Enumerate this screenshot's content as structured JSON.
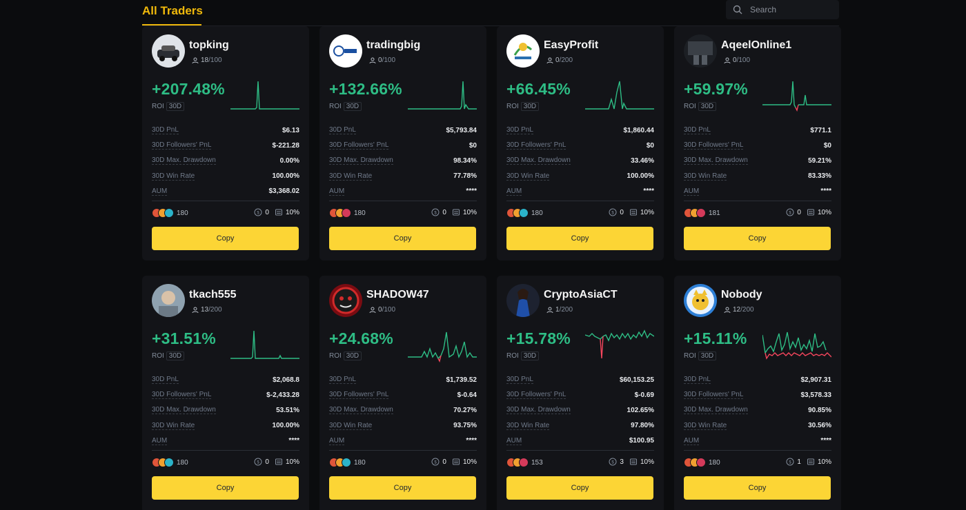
{
  "header": {
    "tab_label": "All Traders",
    "search_placeholder": "Search"
  },
  "labels": {
    "roi": "ROI",
    "period": "30D",
    "pnl": "30D PnL",
    "followers_pnl": "30D Followers' PnL",
    "max_drawdown": "30D Max. Drawdown",
    "win_rate": "30D Win Rate",
    "aum": "AUM",
    "copy_button": "Copy"
  },
  "colors": {
    "accent": "#f0b90b",
    "button": "#fcd535",
    "positive": "#2ebd85",
    "negative": "#f6465d"
  },
  "traders": [
    {
      "name": "topking",
      "followers": "18",
      "max": "/100",
      "roi": "+207.48%",
      "pnl": "$6.13",
      "followers_pnl": "$-221.28",
      "max_drawdown": "0.00%",
      "win_rate": "100.00%",
      "aum": "$3,368.02",
      "copiers": "180",
      "stat_a": "0",
      "stat_b": "10%"
    },
    {
      "name": "tradingbig",
      "followers": "0",
      "max": "/100",
      "roi": "+132.66%",
      "pnl": "$5,793.84",
      "followers_pnl": "$0",
      "max_drawdown": "98.34%",
      "win_rate": "77.78%",
      "aum": "****",
      "copiers": "180",
      "stat_a": "0",
      "stat_b": "10%"
    },
    {
      "name": "EasyProfit",
      "followers": "0",
      "max": "/200",
      "roi": "+66.45%",
      "pnl": "$1,860.44",
      "followers_pnl": "$0",
      "max_drawdown": "33.46%",
      "win_rate": "100.00%",
      "aum": "****",
      "copiers": "180",
      "stat_a": "0",
      "stat_b": "10%"
    },
    {
      "name": "AqeelOnline1",
      "followers": "0",
      "max": "/100",
      "roi": "+59.97%",
      "pnl": "$771.1",
      "followers_pnl": "$0",
      "max_drawdown": "59.21%",
      "win_rate": "83.33%",
      "aum": "****",
      "copiers": "181",
      "stat_a": "0",
      "stat_b": "10%"
    },
    {
      "name": "tkach555",
      "followers": "13",
      "max": "/200",
      "roi": "+31.51%",
      "pnl": "$2,068.8",
      "followers_pnl": "$-2,433.28",
      "max_drawdown": "53.51%",
      "win_rate": "100.00%",
      "aum": "****",
      "copiers": "180",
      "stat_a": "0",
      "stat_b": "10%"
    },
    {
      "name": "SHADOW47",
      "followers": "0",
      "max": "/100",
      "roi": "+24.68%",
      "pnl": "$1,739.52",
      "followers_pnl": "$-0.64",
      "max_drawdown": "70.27%",
      "win_rate": "93.75%",
      "aum": "****",
      "copiers": "180",
      "stat_a": "0",
      "stat_b": "10%"
    },
    {
      "name": "CryptoAsiaCT",
      "followers": "1",
      "max": "/200",
      "roi": "+15.78%",
      "pnl": "$60,153.25",
      "followers_pnl": "$-0.69",
      "max_drawdown": "102.65%",
      "win_rate": "97.80%",
      "aum": "$100.95",
      "copiers": "153",
      "stat_a": "3",
      "stat_b": "10%"
    },
    {
      "name": "Nobody",
      "followers": "12",
      "max": "/200",
      "roi": "+15.11%",
      "pnl": "$2,907.31",
      "followers_pnl": "$3,578.33",
      "max_drawdown": "90.85%",
      "win_rate": "30.56%",
      "aum": "****",
      "copiers": "180",
      "stat_a": "1",
      "stat_b": "10%"
    }
  ]
}
